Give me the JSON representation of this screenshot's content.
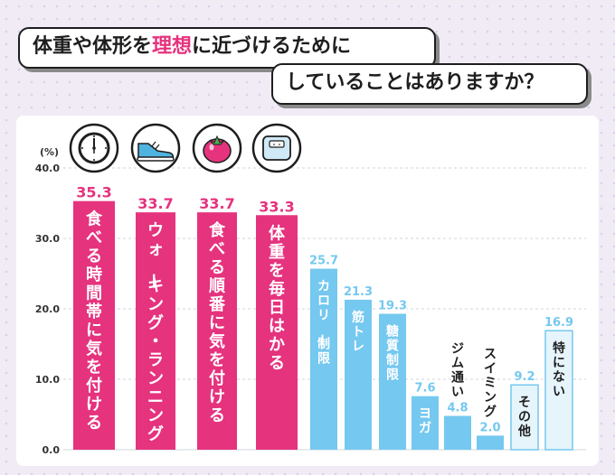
{
  "title": {
    "line1_pre": "体重や体形を",
    "line1_highlight": "理想",
    "line1_post": "に近づけるために",
    "line2": "していることはありますか？"
  },
  "colors": {
    "pink": "#e5337e",
    "blue": "#75c8ef",
    "light": "#e6f4fb",
    "light_border": "#75c8ef",
    "grid": "#cfd4dc",
    "axis_text": "#333333"
  },
  "icons": [
    "clock-icon",
    "shoe-icon",
    "tomato-icon",
    "scale-icon"
  ],
  "chart_data": {
    "type": "bar",
    "unit": "(%)",
    "ylim": [
      0,
      40
    ],
    "yticks": [
      "40.0",
      "30.0",
      "20.0",
      "10.0",
      "0.0"
    ],
    "grid": true,
    "categories": [
      "食べる時間帯に気を付ける",
      "ウォーキング・ランニング",
      "食べる順番に気を付ける",
      "体重を毎日はかる",
      "カロリー制限",
      "筋トレ",
      "糖質制限",
      "ヨガ",
      "ジム通い",
      "スイミング",
      "その他",
      "特にない"
    ],
    "values": [
      35.3,
      33.7,
      33.7,
      33.3,
      25.7,
      21.3,
      19.3,
      7.6,
      4.8,
      2.0,
      9.2,
      16.9
    ],
    "value_labels": [
      "35.3",
      "33.7",
      "33.7",
      "33.3",
      "25.7",
      "21.3",
      "19.3",
      "7.6",
      "4.8",
      "2.0",
      "9.2",
      "16.9"
    ],
    "bar_styles": [
      "pink",
      "pink",
      "pink",
      "pink",
      "blue",
      "blue",
      "blue",
      "blue",
      "blue",
      "blue",
      "light",
      "light"
    ]
  }
}
